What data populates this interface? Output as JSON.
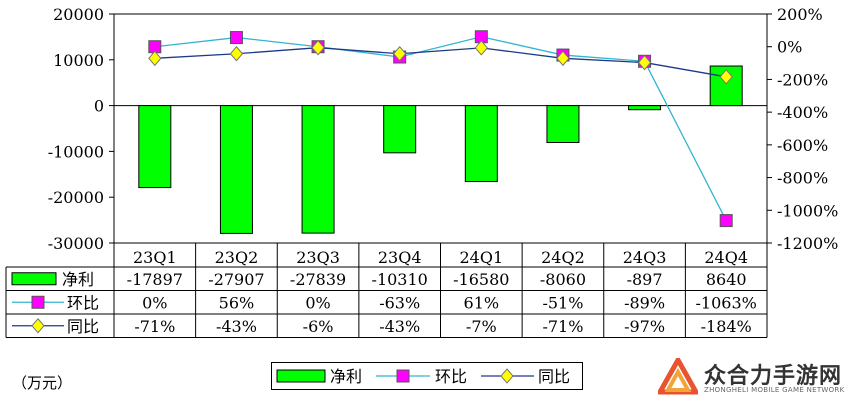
{
  "unit_label": "（万元）",
  "logo": {
    "name": "众合力手游网",
    "sub": "ZHONGHELI MOBILE GAME NETWORK",
    "colors": [
      "#e8542e",
      "#f2a33a",
      "#c0392b"
    ]
  },
  "colors": {
    "bar_fill": "#00ff00",
    "line_qoq": "#33b5d0",
    "marker_qoq": "#ff00ff",
    "line_yoy": "#1d3a8a",
    "marker_yoy": "#ffff00"
  },
  "chart_data": {
    "type": "bar",
    "categories": [
      "23Q1",
      "23Q2",
      "23Q3",
      "23Q4",
      "24Q1",
      "24Q2",
      "24Q3",
      "24Q4"
    ],
    "y_left": {
      "min": -30000,
      "max": 20000,
      "ticks": [
        20000,
        10000,
        0,
        -10000,
        -20000,
        -30000
      ],
      "tick_labels": [
        "20000",
        "10000",
        "0",
        "-10000",
        "-20000",
        "-30000"
      ]
    },
    "y_right": {
      "min": -1200,
      "max": 200,
      "ticks": [
        200,
        0,
        -200,
        -400,
        -600,
        -800,
        -1000,
        -1200
      ],
      "tick_labels": [
        "200%",
        "0%",
        "-200%",
        "-400%",
        "-600%",
        "-800%",
        "-1000%",
        "-1200%"
      ]
    },
    "series": [
      {
        "name": "净利",
        "kind": "bar",
        "axis": "left",
        "values": [
          -17897,
          -27907,
          -27839,
          -10310,
          -16580,
          -8060,
          -897,
          8640
        ],
        "labels": [
          "-17897",
          "-27907",
          "-27839",
          "-10310",
          "-16580",
          "-8060",
          "-897",
          "8640"
        ]
      },
      {
        "name": "环比",
        "kind": "line",
        "axis": "right",
        "values": [
          0,
          56,
          0,
          -63,
          61,
          -51,
          -89,
          -1063
        ],
        "labels": [
          "0%",
          "56%",
          "0%",
          "-63%",
          "61%",
          "-51%",
          "-89%",
          "-1063%"
        ]
      },
      {
        "name": "同比",
        "kind": "line",
        "axis": "right",
        "values": [
          -71,
          -43,
          -6,
          -43,
          -7,
          -71,
          -97,
          -184
        ],
        "labels": [
          "-71%",
          "-43%",
          "-6%",
          "-43%",
          "-7%",
          "-71%",
          "-97%",
          "-184%"
        ]
      }
    ],
    "legend": [
      "净利",
      "环比",
      "同比"
    ],
    "legend_position": "bottom"
  }
}
